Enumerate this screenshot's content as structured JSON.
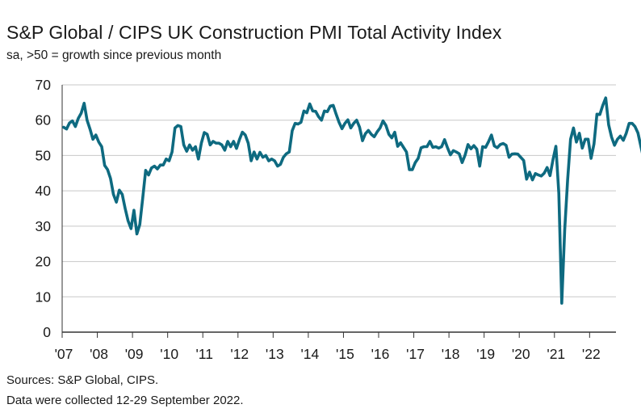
{
  "title": "S&P Global / CIPS UK Construction PMI Total Activity Index",
  "subtitle": "sa, >50 = growth since previous month",
  "sources": {
    "line1": "Sources: S&P Global, CIPS.",
    "line2": "Data were collected 12-29 September 2022."
  },
  "colors": {
    "line": "#0e6a80",
    "grid": "#c8c8c8",
    "axis": "#333333"
  },
  "chart_data": {
    "type": "line",
    "title": "S&P Global / CIPS UK Construction PMI Total Activity Index",
    "subtitle": "sa, >50 = growth since previous month",
    "ylim": [
      0,
      70
    ],
    "y_ticks": [
      0,
      10,
      20,
      30,
      40,
      50,
      60,
      70
    ],
    "x_tick_labels": [
      "'07",
      "'08",
      "'09",
      "'10",
      "'11",
      "'12",
      "'13",
      "'14",
      "'15",
      "'16",
      "'17",
      "'18",
      "'19",
      "'20",
      "'21",
      "'22"
    ],
    "x_start": "2007-01",
    "x_end": "2022-09",
    "grid": "horizontal",
    "series": [
      {
        "values": [
          58.0,
          57.5,
          59.2,
          59.8,
          58.2,
          60.5,
          62.0,
          64.8,
          60.0,
          57.5,
          54.6,
          55.8,
          53.8,
          52.5,
          47.2,
          46.0,
          43.5,
          39.0,
          36.8,
          40.2,
          39.0,
          35.0,
          31.5,
          29.3,
          34.5,
          27.8,
          30.5,
          38.0,
          45.8,
          44.5,
          46.5,
          47.0,
          46.2,
          47.3,
          47.3,
          49.0,
          48.5,
          51.0,
          57.8,
          58.5,
          58.2,
          53.0,
          51.2,
          53.0,
          51.5,
          52.5,
          49.0,
          53.5,
          56.5,
          56.0,
          53.0,
          54.0,
          53.5,
          53.5,
          53.0,
          51.5,
          54.0,
          52.5,
          54.0,
          52.0,
          54.5,
          56.6,
          55.8,
          53.5,
          48.5,
          51.0,
          49.0,
          50.9,
          49.5,
          50.0,
          48.5,
          49.0,
          48.5,
          47.0,
          47.5,
          49.5,
          50.5,
          51.0,
          57.0,
          59.1,
          58.9,
          59.4,
          62.6,
          62.1,
          64.6,
          62.6,
          62.5,
          61.0,
          60.0,
          62.6,
          62.4,
          64.0,
          64.2,
          61.7,
          59.4,
          57.6,
          59.1,
          60.1,
          57.8,
          59.1,
          60.0,
          58.0,
          54.2,
          56.2,
          57.1,
          56.0,
          55.3,
          56.7,
          57.8,
          59.8,
          58.5,
          56.0,
          55.0,
          56.6,
          52.6,
          53.6,
          52.3,
          51.0,
          46.0,
          46.0,
          48.0,
          49.2,
          52.2,
          52.5,
          52.5,
          54.0,
          52.3,
          52.5,
          52.1,
          52.5,
          54.5,
          52.2,
          50.2,
          51.4,
          51.0,
          50.5,
          48.0,
          50.1,
          53.1,
          51.9,
          52.8,
          51.8,
          47.0,
          52.5,
          52.3,
          53.9,
          55.8,
          52.7,
          52.2,
          53.1,
          53.4,
          52.9,
          49.5,
          50.4,
          50.5,
          50.4,
          49.5,
          48.6,
          43.3,
          45.3,
          43.1,
          44.9,
          44.5,
          44.2,
          45.0,
          46.6,
          44.3,
          48.8,
          52.6,
          39.3,
          8.2,
          28.9,
          43.1,
          54.6,
          57.8,
          53.8,
          56.3,
          52.1,
          54.6,
          54.6,
          49.2,
          53.3,
          61.7,
          61.6,
          64.2,
          66.3,
          58.7,
          55.2,
          52.9,
          54.6,
          55.5,
          54.3,
          56.3,
          59.1,
          59.1,
          58.2,
          56.4,
          52.6,
          48.9,
          49.2,
          52.3
        ]
      }
    ]
  }
}
